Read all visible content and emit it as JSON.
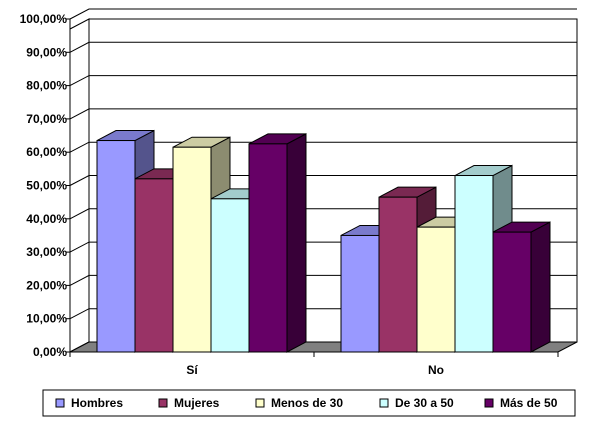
{
  "chart_data": {
    "type": "bar",
    "title": "",
    "xlabel": "",
    "ylabel": "",
    "categories": [
      "Sí",
      "No"
    ],
    "ylim": [
      0,
      100
    ],
    "y_ticks": [
      "0,00%",
      "10,00%",
      "20,00%",
      "30,00%",
      "40,00%",
      "50,00%",
      "60,00%",
      "70,00%",
      "80,00%",
      "90,00%",
      "100,00%"
    ],
    "grid": true,
    "style": "3d-clustered-column",
    "legend_position": "bottom",
    "series": [
      {
        "name": "Hombres",
        "color": "#9999ff",
        "values": [
          63.5,
          35.0
        ]
      },
      {
        "name": "Mujeres",
        "color": "#993366",
        "values": [
          52.0,
          46.5
        ]
      },
      {
        "name": "Menos de 30",
        "color": "#ffffcc",
        "values": [
          61.5,
          37.5
        ]
      },
      {
        "name": "De 30 a 50",
        "color": "#ccffff",
        "values": [
          46.0,
          53.0
        ]
      },
      {
        "name": "Más de 50",
        "color": "#660066",
        "values": [
          62.5,
          36.0
        ]
      }
    ]
  }
}
